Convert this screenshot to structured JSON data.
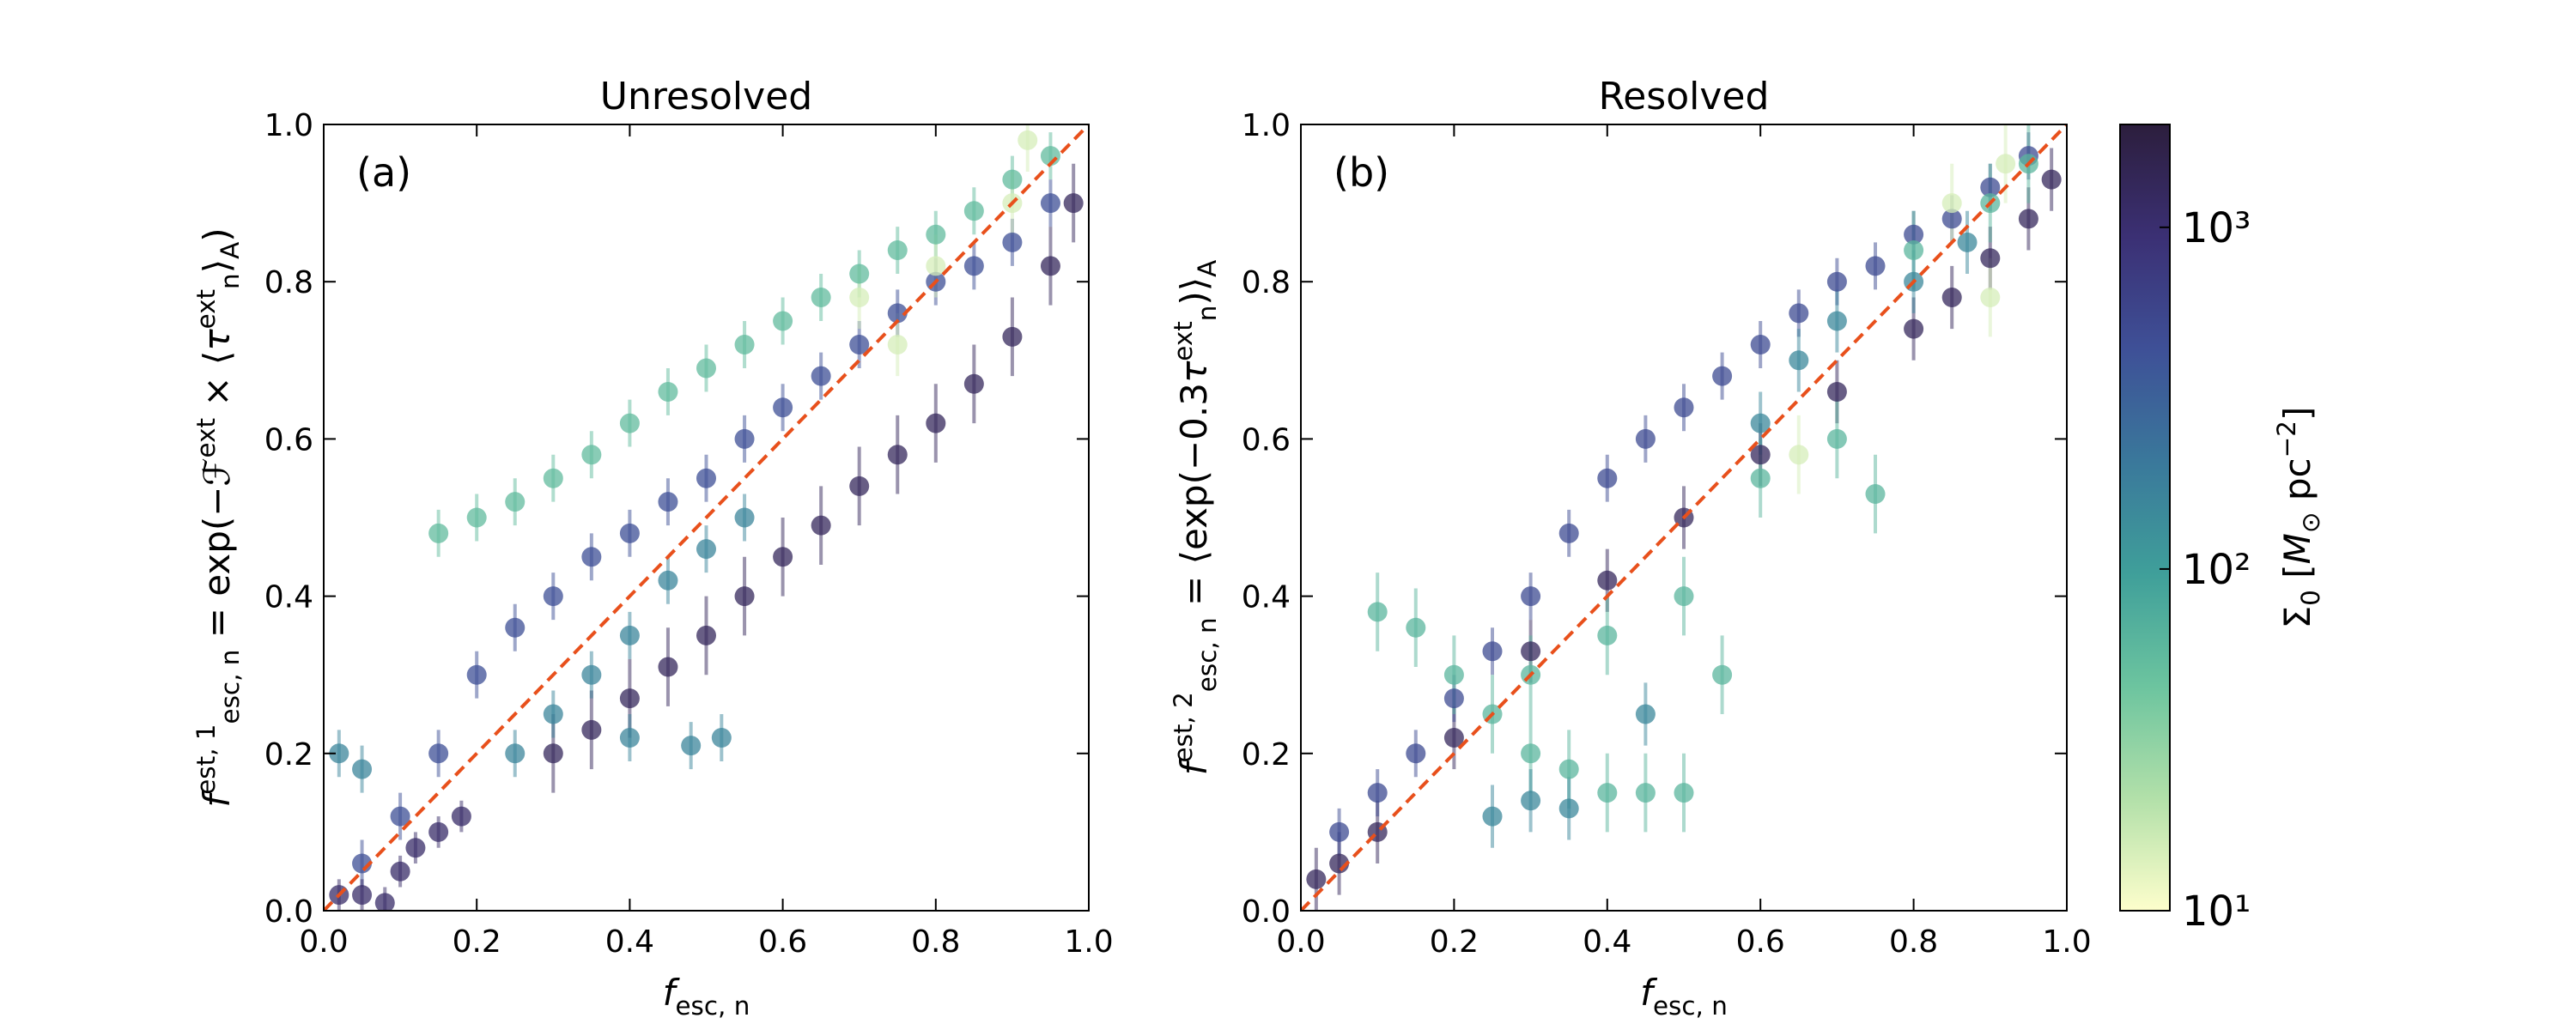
{
  "chart_data": [
    {
      "type": "scatter",
      "title": "Unresolved",
      "panel_label": "(a)",
      "xlabel": [
        {
          "text": "f",
          "style": "italic"
        },
        {
          "text": "esc, n",
          "style": "sub"
        }
      ],
      "ylabel": [
        {
          "text": "f",
          "style": "italic"
        },
        {
          "text": "est, 1",
          "style": "sup"
        },
        {
          "text": "esc, n",
          "style": "sub"
        },
        {
          "text": " = exp(−",
          "style": "normal"
        },
        {
          "text": "ℱ",
          "style": "italic"
        },
        {
          "text": "ext",
          "style": "sup"
        },
        {
          "text": " × ⟨",
          "style": "normal"
        },
        {
          "text": "τ",
          "style": "italic"
        },
        {
          "text": "ext",
          "style": "sup"
        },
        {
          "text": "n",
          "style": "sub"
        },
        {
          "text": "⟩",
          "style": "normal"
        },
        {
          "text": "A",
          "style": "sub"
        },
        {
          "text": ")",
          "style": "normal"
        }
      ],
      "xlim": [
        0,
        1
      ],
      "ylim": [
        0,
        1
      ],
      "xticks": [
        {
          "value": 0,
          "label": "0.0"
        },
        {
          "value": 0.2,
          "label": "0.2"
        },
        {
          "value": 0.4,
          "label": "0.4"
        },
        {
          "value": 0.6,
          "label": "0.6"
        },
        {
          "value": 0.8,
          "label": "0.8"
        },
        {
          "value": 1,
          "label": "1.0"
        }
      ],
      "yticks": [
        {
          "value": 0,
          "label": "0.0"
        },
        {
          "value": 0.2,
          "label": "0.2"
        },
        {
          "value": 0.4,
          "label": "0.4"
        },
        {
          "value": 0.6,
          "label": "0.6"
        },
        {
          "value": 0.8,
          "label": "0.8"
        },
        {
          "value": 1,
          "label": "1.0"
        }
      ],
      "reference_line_color": "#e8501c",
      "x": [
        0.3,
        0.35,
        0.4,
        0.45,
        0.5,
        0.55,
        0.6,
        0.65,
        0.7,
        0.75,
        0.8,
        0.85,
        0.9,
        0.95,
        0.98,
        0.05,
        0.1,
        0.15,
        0.2,
        0.25,
        0.3,
        0.35,
        0.4,
        0.45,
        0.5,
        0.55,
        0.6,
        0.65,
        0.7,
        0.75,
        0.8,
        0.85,
        0.9,
        0.95,
        0.15,
        0.2,
        0.25,
        0.3,
        0.35,
        0.4,
        0.45,
        0.5,
        0.55,
        0.6,
        0.65,
        0.7,
        0.75,
        0.8,
        0.85,
        0.9,
        0.95,
        0.7,
        0.8,
        0.9,
        0.92,
        0.75,
        0.02,
        0.05,
        0.08,
        0.1,
        0.12,
        0.15,
        0.18,
        0.25,
        0.3,
        0.35,
        0.4,
        0.45,
        0.5,
        0.55,
        0.4,
        0.48,
        0.52,
        0.02,
        0.05
      ],
      "y": [
        0.2,
        0.23,
        0.27,
        0.31,
        0.35,
        0.4,
        0.45,
        0.49,
        0.54,
        0.58,
        0.62,
        0.67,
        0.73,
        0.82,
        0.9,
        0.06,
        0.12,
        0.2,
        0.3,
        0.36,
        0.4,
        0.45,
        0.48,
        0.52,
        0.55,
        0.6,
        0.64,
        0.68,
        0.72,
        0.76,
        0.8,
        0.82,
        0.85,
        0.9,
        0.48,
        0.5,
        0.52,
        0.55,
        0.58,
        0.62,
        0.66,
        0.69,
        0.72,
        0.75,
        0.78,
        0.81,
        0.84,
        0.86,
        0.89,
        0.93,
        0.96,
        0.78,
        0.82,
        0.9,
        0.98,
        0.72,
        0.02,
        0.02,
        0.01,
        0.05,
        0.08,
        0.1,
        0.12,
        0.2,
        0.25,
        0.3,
        0.35,
        0.42,
        0.46,
        0.5,
        0.22,
        0.21,
        0.22,
        0.2,
        0.18
      ],
      "yerr": [
        0.05,
        0.05,
        0.05,
        0.05,
        0.05,
        0.05,
        0.05,
        0.05,
        0.05,
        0.05,
        0.05,
        0.05,
        0.05,
        0.05,
        0.05,
        0.03,
        0.03,
        0.03,
        0.03,
        0.03,
        0.03,
        0.03,
        0.03,
        0.03,
        0.03,
        0.03,
        0.03,
        0.03,
        0.03,
        0.03,
        0.03,
        0.03,
        0.03,
        0.03,
        0.03,
        0.03,
        0.03,
        0.03,
        0.03,
        0.03,
        0.03,
        0.03,
        0.03,
        0.03,
        0.03,
        0.03,
        0.03,
        0.03,
        0.03,
        0.03,
        0.03,
        0.04,
        0.04,
        0.04,
        0.04,
        0.04,
        0.02,
        0.02,
        0.02,
        0.02,
        0.02,
        0.02,
        0.02,
        0.03,
        0.03,
        0.03,
        0.03,
        0.03,
        0.03,
        0.03,
        0.03,
        0.03,
        0.03,
        0.03,
        0.03
      ],
      "c": [
        1300,
        1300,
        1300,
        1300,
        1300,
        1300,
        1300,
        1300,
        1300,
        1300,
        1300,
        1300,
        1300,
        1300,
        1300,
        450,
        450,
        450,
        450,
        450,
        450,
        450,
        450,
        450,
        450,
        450,
        450,
        450,
        450,
        450,
        450,
        450,
        450,
        450,
        55,
        55,
        55,
        55,
        55,
        55,
        55,
        55,
        55,
        55,
        55,
        55,
        55,
        55,
        55,
        55,
        55,
        15,
        15,
        15,
        15,
        15,
        1100,
        1100,
        1100,
        1100,
        1100,
        1100,
        1100,
        160,
        160,
        160,
        160,
        160,
        160,
        160,
        160,
        160,
        160,
        160,
        160
      ]
    },
    {
      "type": "scatter",
      "title": "Resolved",
      "panel_label": "(b)",
      "xlabel": [
        {
          "text": "f",
          "style": "italic"
        },
        {
          "text": "esc, n",
          "style": "sub"
        }
      ],
      "ylabel": [
        {
          "text": "f",
          "style": "italic"
        },
        {
          "text": "est, 2",
          "style": "sup"
        },
        {
          "text": "esc, n",
          "style": "sub"
        },
        {
          "text": " = ⟨exp(−0.3",
          "style": "normal"
        },
        {
          "text": "τ",
          "style": "italic"
        },
        {
          "text": "ext",
          "style": "sup"
        },
        {
          "text": "n",
          "style": "sub"
        },
        {
          "text": ")⟩",
          "style": "normal"
        },
        {
          "text": "A",
          "style": "sub"
        }
      ],
      "xlim": [
        0,
        1
      ],
      "ylim": [
        0,
        1
      ],
      "xticks": [
        {
          "value": 0,
          "label": "0.0"
        },
        {
          "value": 0.2,
          "label": "0.2"
        },
        {
          "value": 0.4,
          "label": "0.4"
        },
        {
          "value": 0.6,
          "label": "0.6"
        },
        {
          "value": 0.8,
          "label": "0.8"
        },
        {
          "value": 1,
          "label": "1.0"
        }
      ],
      "yticks": [
        {
          "value": 0,
          "label": "0.0"
        },
        {
          "value": 0.2,
          "label": "0.2"
        },
        {
          "value": 0.4,
          "label": "0.4"
        },
        {
          "value": 0.6,
          "label": "0.6"
        },
        {
          "value": 0.8,
          "label": "0.8"
        },
        {
          "value": 1,
          "label": "1.0"
        }
      ],
      "reference_line_color": "#e8501c",
      "x": [
        0.02,
        0.05,
        0.1,
        0.2,
        0.3,
        0.4,
        0.5,
        0.6,
        0.7,
        0.8,
        0.85,
        0.9,
        0.95,
        0.98,
        0.05,
        0.1,
        0.15,
        0.2,
        0.25,
        0.3,
        0.35,
        0.4,
        0.45,
        0.5,
        0.55,
        0.6,
        0.65,
        0.7,
        0.75,
        0.8,
        0.85,
        0.9,
        0.95,
        0.1,
        0.15,
        0.2,
        0.25,
        0.3,
        0.35,
        0.4,
        0.45,
        0.5,
        0.3,
        0.4,
        0.5,
        0.55,
        0.6,
        0.7,
        0.75,
        0.8,
        0.9,
        0.95,
        0.25,
        0.3,
        0.35,
        0.45,
        0.6,
        0.65,
        0.7,
        0.8,
        0.87,
        0.85,
        0.9,
        0.92,
        0.65
      ],
      "y": [
        0.04,
        0.06,
        0.1,
        0.22,
        0.33,
        0.42,
        0.5,
        0.58,
        0.66,
        0.74,
        0.78,
        0.83,
        0.88,
        0.93,
        0.1,
        0.15,
        0.2,
        0.27,
        0.33,
        0.4,
        0.48,
        0.55,
        0.6,
        0.64,
        0.68,
        0.72,
        0.76,
        0.8,
        0.82,
        0.86,
        0.88,
        0.92,
        0.96,
        0.38,
        0.36,
        0.3,
        0.25,
        0.2,
        0.18,
        0.15,
        0.15,
        0.15,
        0.3,
        0.35,
        0.4,
        0.3,
        0.55,
        0.6,
        0.53,
        0.84,
        0.9,
        0.95,
        0.12,
        0.14,
        0.13,
        0.25,
        0.62,
        0.7,
        0.75,
        0.8,
        0.85,
        0.9,
        0.78,
        0.95,
        0.58
      ],
      "yerr": [
        0.04,
        0.04,
        0.04,
        0.04,
        0.04,
        0.04,
        0.04,
        0.04,
        0.04,
        0.04,
        0.04,
        0.04,
        0.04,
        0.04,
        0.03,
        0.03,
        0.03,
        0.03,
        0.03,
        0.03,
        0.03,
        0.03,
        0.03,
        0.03,
        0.03,
        0.03,
        0.03,
        0.03,
        0.03,
        0.03,
        0.03,
        0.03,
        0.03,
        0.05,
        0.05,
        0.05,
        0.05,
        0.05,
        0.05,
        0.05,
        0.05,
        0.05,
        0.05,
        0.05,
        0.05,
        0.05,
        0.05,
        0.05,
        0.05,
        0.05,
        0.05,
        0.05,
        0.04,
        0.04,
        0.04,
        0.04,
        0.04,
        0.04,
        0.04,
        0.04,
        0.04,
        0.05,
        0.05,
        0.05,
        0.05
      ],
      "c": [
        1300,
        1300,
        1300,
        1300,
        1300,
        1300,
        1300,
        1300,
        1300,
        1300,
        1300,
        1300,
        1300,
        1300,
        500,
        500,
        500,
        500,
        500,
        500,
        500,
        500,
        500,
        500,
        500,
        500,
        500,
        500,
        500,
        500,
        500,
        500,
        500,
        60,
        60,
        60,
        60,
        60,
        60,
        60,
        60,
        60,
        60,
        60,
        60,
        60,
        60,
        60,
        60,
        60,
        60,
        60,
        150,
        150,
        150,
        150,
        150,
        150,
        150,
        150,
        150,
        15,
        15,
        15,
        15
      ]
    }
  ],
  "colorbar": {
    "scale": "log",
    "clim": [
      10,
      2000
    ],
    "colormap": [
      "#fdfecc",
      "#b2e0a9",
      "#6cc49f",
      "#3f9f9a",
      "#3a789b",
      "#3e5097",
      "#3b3074",
      "#2c1e3d"
    ],
    "ticks": [
      {
        "value": 10,
        "label": "10¹"
      },
      {
        "value": 100,
        "label": "10²"
      },
      {
        "value": 1000,
        "label": "10³"
      }
    ],
    "label": [
      {
        "text": "Σ",
        "style": "normal"
      },
      {
        "text": "0",
        "style": "sub"
      },
      {
        "text": " [",
        "style": "normal"
      },
      {
        "text": "M",
        "style": "italic"
      },
      {
        "text": "⊙",
        "style": "sub"
      },
      {
        "text": " pc",
        "style": "normal"
      },
      {
        "text": "−2",
        "style": "sup"
      },
      {
        "text": "]",
        "style": "normal"
      }
    ]
  }
}
